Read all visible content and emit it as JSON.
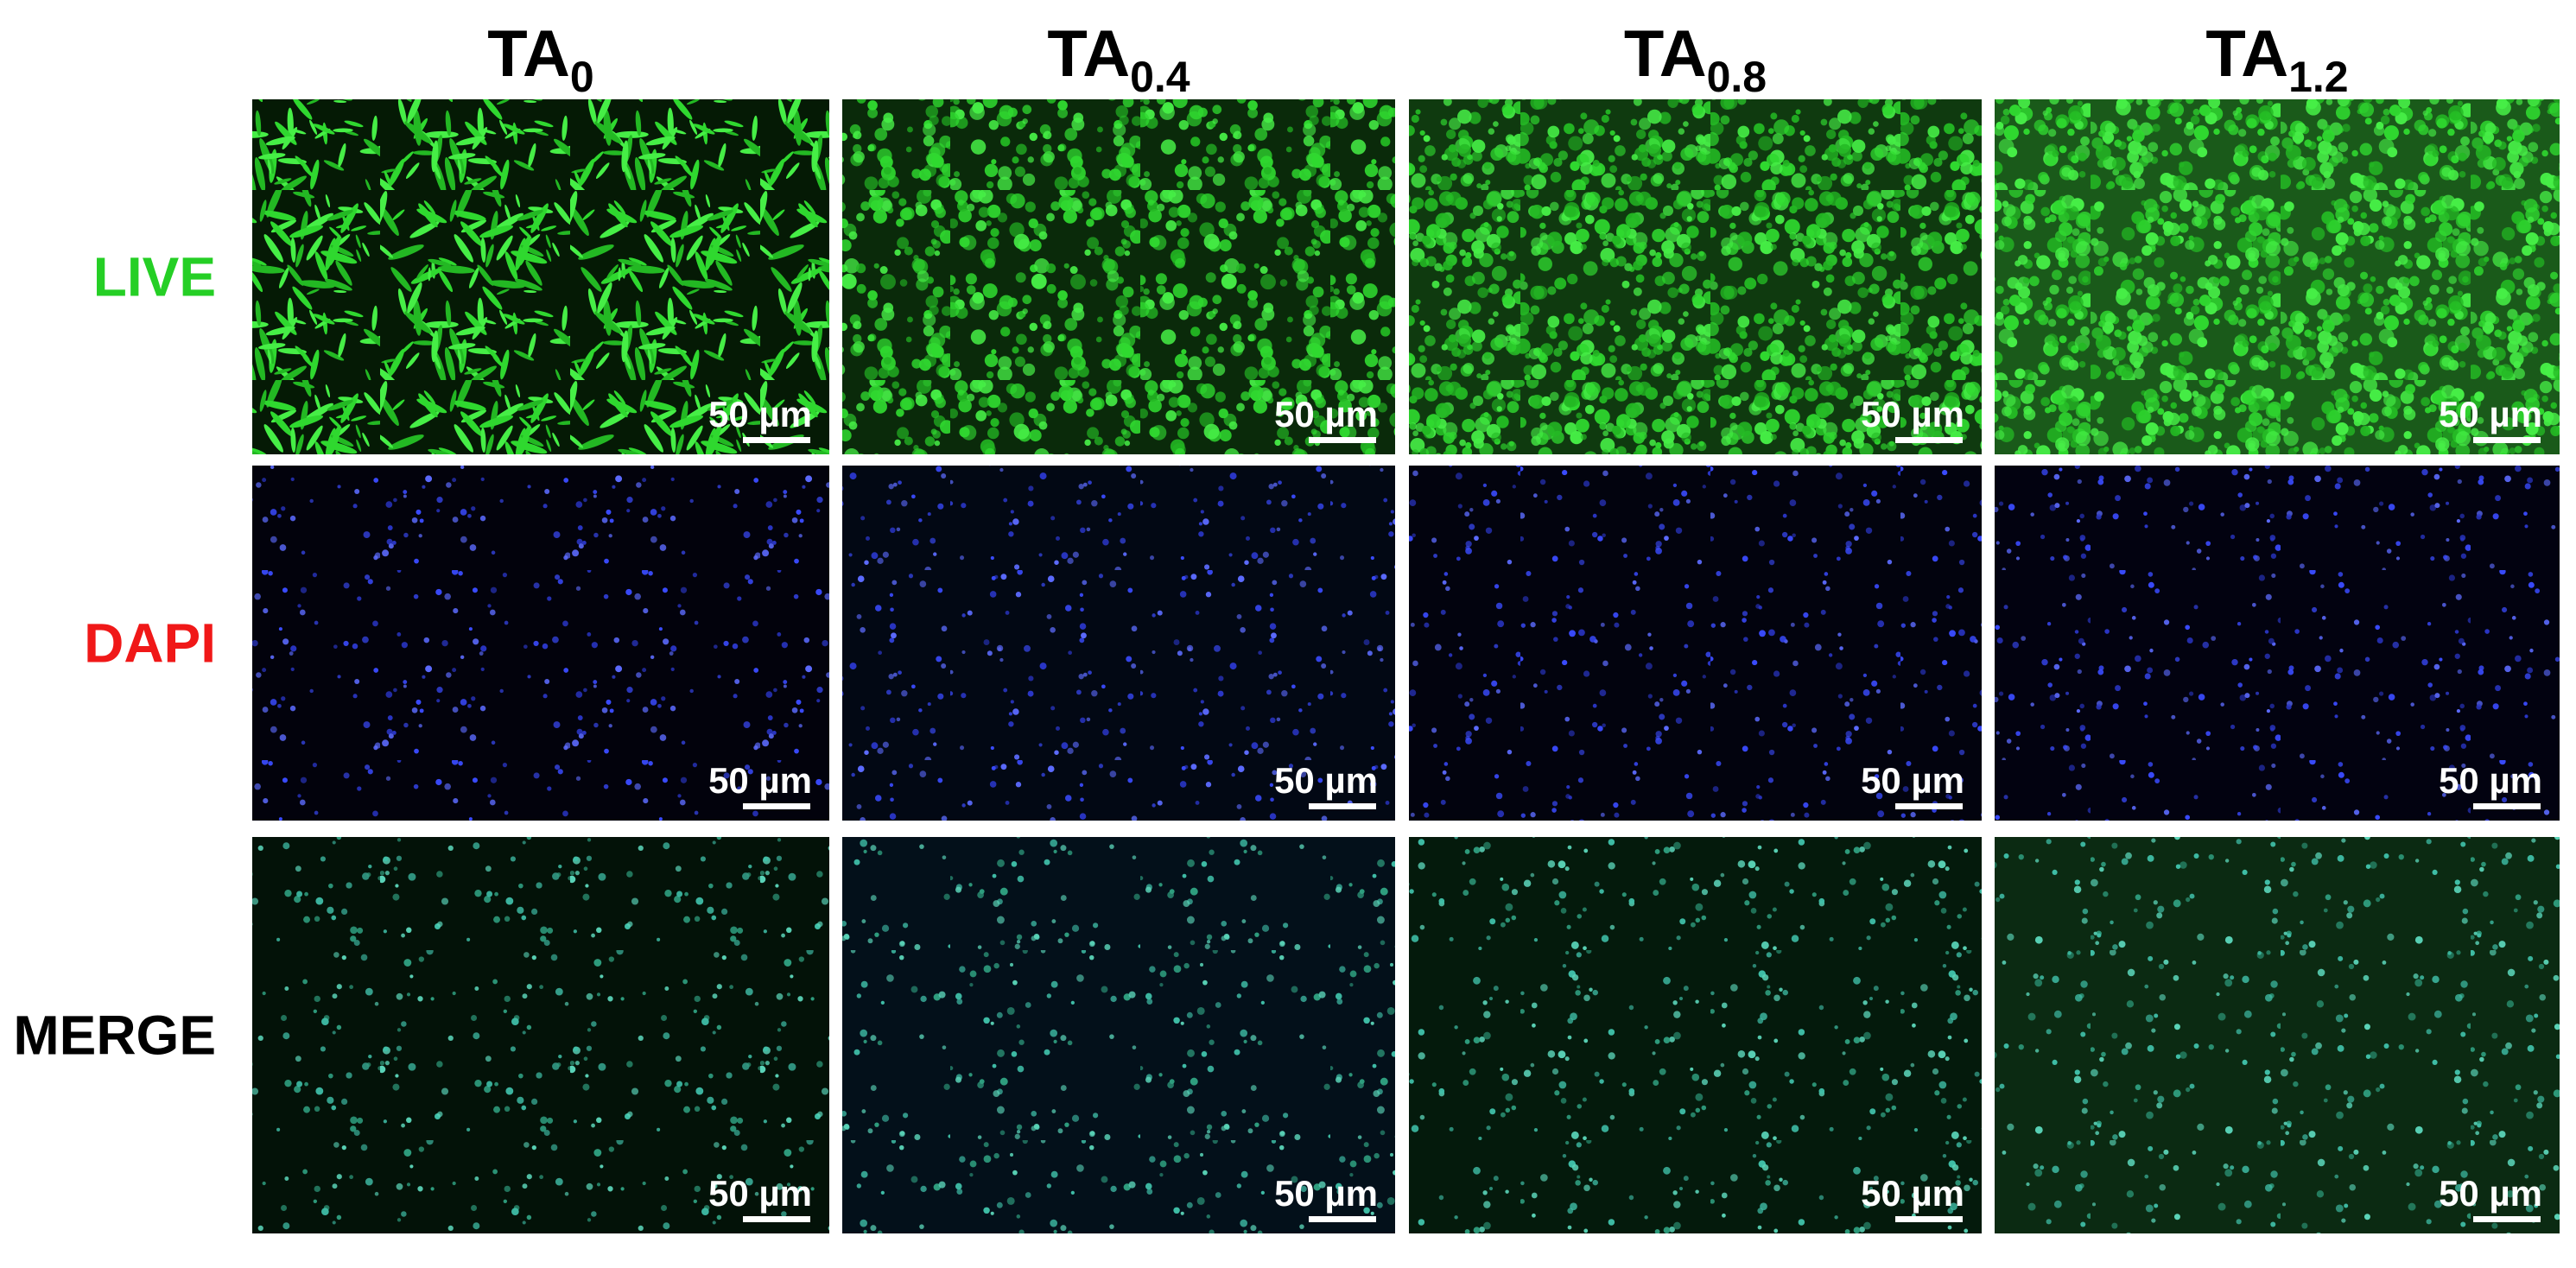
{
  "columns": [
    {
      "base": "TA",
      "sub": "0"
    },
    {
      "base": "TA",
      "sub": "0.4"
    },
    {
      "base": "TA",
      "sub": "0.8"
    },
    {
      "base": "TA",
      "sub": "1.2"
    }
  ],
  "rows": [
    {
      "label": "LIVE",
      "color": "#25cf25"
    },
    {
      "label": "DAPI",
      "color": "#f01818"
    },
    {
      "label": "MERGE",
      "color": "#000000"
    }
  ],
  "panels": [
    [
      "50 µm",
      "50 µm",
      "50 µm",
      "50 µm"
    ],
    [
      "50 µm",
      "50 µm",
      "50 µm",
      "50 µm"
    ],
    [
      "50 µm",
      "50 µm",
      "50 µm",
      "50 µm"
    ]
  ]
}
